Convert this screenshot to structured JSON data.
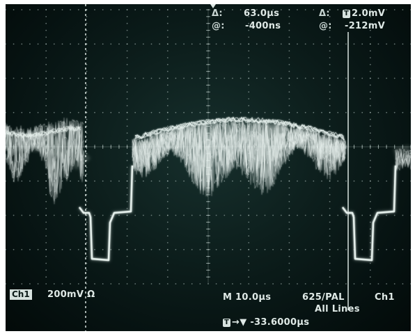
{
  "cursor_readout": {
    "time_delta_label": "Δ:",
    "time_delta_value": "63.0µs",
    "time_at_label": "@:",
    "time_at_value": "-400ns",
    "volt_delta_label": "Δ:",
    "volt_trigger_icon": "T",
    "volt_delta_value": "2.0mV",
    "volt_at_label": "@:",
    "volt_at_value": "-212mV"
  },
  "channel": {
    "name": "Ch1",
    "scale": "200mV",
    "coupling_symbol": "Ω"
  },
  "timebase": {
    "value": "M 10.0µs"
  },
  "trigger": {
    "standard": "625/PAL",
    "source": "Ch1",
    "lines": "All Lines",
    "icon": "T",
    "position": "→▼ -33.6000µs"
  },
  "colors": {
    "screen_bg": "#0c1d1b",
    "trace": "#e8f2ee",
    "graticule": "#b8c8c4",
    "readout_text": "#dfe9e6"
  }
}
